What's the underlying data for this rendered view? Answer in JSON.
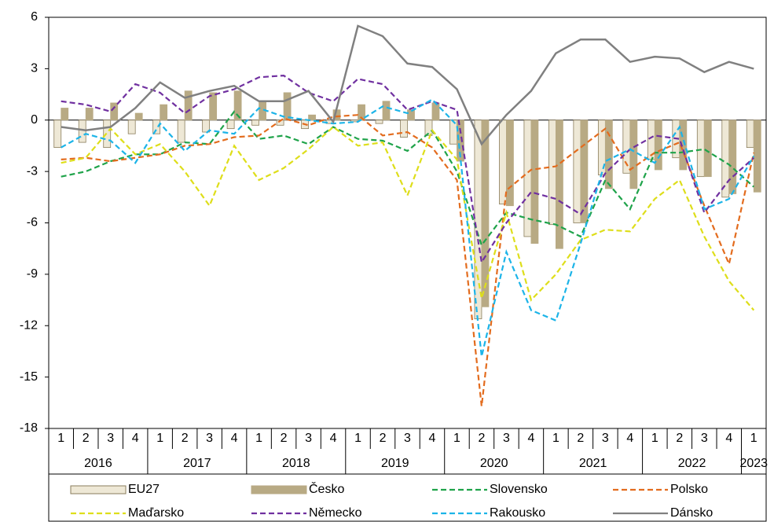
{
  "chart_data": {
    "type": "combo",
    "categories": [
      "1",
      "2",
      "3",
      "4",
      "1",
      "2",
      "3",
      "4",
      "1",
      "2",
      "3",
      "4",
      "1",
      "2",
      "3",
      "4",
      "1",
      "2",
      "3",
      "4",
      "1",
      "2",
      "3",
      "4",
      "1",
      "2",
      "3",
      "4",
      "1"
    ],
    "years": [
      "2016",
      "2017",
      "2018",
      "2019",
      "2020",
      "2021",
      "2022",
      "2023"
    ],
    "ylim": [
      -18,
      6
    ],
    "yticks": [
      6,
      3,
      0,
      -3,
      -6,
      -9,
      -12,
      -15,
      -18
    ],
    "series": [
      {
        "name": "EU27",
        "type": "bar",
        "color": "#eee8d6",
        "stroke": "#8a7d5c",
        "values": [
          -1.6,
          -1.3,
          -1.6,
          -0.8,
          -0.8,
          -1.3,
          -0.7,
          -0.5,
          -0.3,
          -0.3,
          -0.5,
          -0.2,
          -0.1,
          -0.2,
          -1.0,
          -0.9,
          -1.4,
          -11.6,
          -4.9,
          -6.8,
          -6.1,
          -6.0,
          -3.2,
          -3.1,
          -2.3,
          -2.2,
          -3.3,
          -4.5,
          -1.6
        ]
      },
      {
        "name": "Česko",
        "type": "bar",
        "color": "#b8aa84",
        "stroke": "#b8aa84",
        "values": [
          0.7,
          0.7,
          1.0,
          0.4,
          0.9,
          1.7,
          1.6,
          1.7,
          1.1,
          1.6,
          0.3,
          0.6,
          0.9,
          1.1,
          0.6,
          1.0,
          -2.4,
          -10.9,
          -5.0,
          -7.2,
          -7.5,
          -6.0,
          -4.0,
          -4.0,
          -2.9,
          -2.9,
          -3.3,
          -4.3,
          -4.2
        ]
      },
      {
        "name": "Slovensko",
        "type": "line",
        "dashed": true,
        "color": "#1fa34a",
        "values": [
          -3.3,
          -3.0,
          -2.4,
          -2.0,
          -2.0,
          -1.3,
          -1.4,
          0.5,
          -1.1,
          -0.9,
          -1.4,
          -0.4,
          -1.1,
          -1.2,
          -1.8,
          -0.6,
          -3.0,
          -7.3,
          -5.4,
          -5.8,
          -6.1,
          -6.8,
          -3.5,
          -5.2,
          -1.9,
          -1.9,
          -1.7,
          -2.6,
          -3.9
        ]
      },
      {
        "name": "Polsko",
        "type": "line",
        "dashed": true,
        "color": "#e36c1e",
        "values": [
          -2.3,
          -2.2,
          -2.4,
          -2.2,
          -2.0,
          -1.5,
          -1.4,
          -1.0,
          -0.9,
          0.1,
          -0.3,
          0.2,
          0.3,
          -0.9,
          -0.7,
          -1.6,
          -3.5,
          -16.7,
          -4.1,
          -2.9,
          -2.7,
          -1.6,
          -0.5,
          -2.9,
          -1.9,
          -1.3,
          -5.0,
          -8.4,
          -1.9
        ]
      },
      {
        "name": "Maďarsko",
        "type": "line",
        "dashed": true,
        "color": "#dede1a",
        "values": [
          -2.5,
          -2.2,
          -0.5,
          -2.0,
          -1.4,
          -3.0,
          -5.0,
          -1.5,
          -3.5,
          -2.8,
          -1.7,
          -0.4,
          -1.5,
          -1.3,
          -4.4,
          -0.6,
          -2.3,
          -10.4,
          -5.4,
          -10.5,
          -9.0,
          -7.0,
          -6.4,
          -6.5,
          -4.6,
          -3.5,
          -6.8,
          -9.4,
          -11.1
        ]
      },
      {
        "name": "Německo",
        "type": "line",
        "dashed": true,
        "color": "#7030a0",
        "values": [
          1.1,
          0.9,
          0.5,
          2.1,
          1.6,
          0.4,
          1.4,
          1.8,
          2.5,
          2.6,
          1.6,
          1.1,
          2.4,
          2.1,
          0.6,
          1.1,
          0.6,
          -8.3,
          -6.0,
          -4.2,
          -4.6,
          -5.5,
          -3.1,
          -1.7,
          -0.9,
          -1.1,
          -5.4,
          -3.5,
          -2.2
        ]
      },
      {
        "name": "Rakousko",
        "type": "line",
        "dashed": true,
        "color": "#1cb4e8",
        "values": [
          -1.6,
          -0.8,
          -1.2,
          -2.5,
          -0.2,
          -1.8,
          -0.6,
          -0.8,
          0.7,
          0.2,
          0.0,
          -0.2,
          -0.1,
          0.8,
          0.4,
          1.2,
          -0.3,
          -13.8,
          -7.7,
          -11.1,
          -11.7,
          -7.2,
          -2.4,
          -1.7,
          -2.5,
          -0.4,
          -5.2,
          -4.6,
          -2.1
        ]
      },
      {
        "name": "Dánsko",
        "type": "line",
        "dashed": false,
        "color": "#808080",
        "values": [
          -0.4,
          -0.6,
          -0.4,
          0.7,
          2.2,
          1.3,
          1.7,
          2.0,
          1.1,
          1.1,
          1.7,
          -0.1,
          5.5,
          4.9,
          3.3,
          3.1,
          1.8,
          -1.4,
          0.3,
          1.7,
          3.9,
          4.7,
          4.7,
          3.4,
          3.7,
          3.6,
          2.8,
          3.4,
          3.0
        ]
      }
    ]
  }
}
